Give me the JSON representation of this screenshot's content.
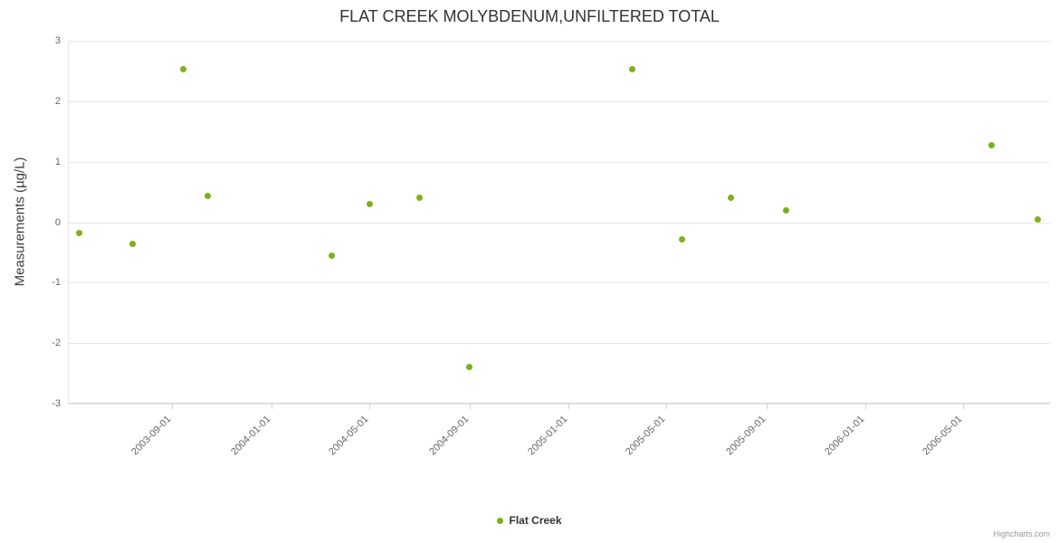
{
  "credits": "Highcharts.com",
  "chart_data": {
    "type": "scatter",
    "title": "FLAT CREEK MOLYBDENUM,UNFILTERED TOTAL",
    "xlabel": "",
    "ylabel": "Measurements (µg/L)",
    "ylim": [
      -3,
      3
    ],
    "y_ticks": [
      3,
      2,
      1,
      0,
      -1,
      -2,
      -3
    ],
    "x_range": [
      "2003-04-26",
      "2006-08-16"
    ],
    "x_ticks": [
      "2003-09-01",
      "2004-01-01",
      "2004-05-01",
      "2004-09-01",
      "2005-01-01",
      "2005-05-01",
      "2005-09-01",
      "2006-01-01",
      "2006-05-01"
    ],
    "grid": true,
    "legend": {
      "position": "bottom",
      "items": [
        {
          "label": "Flat Creek",
          "color": "#7cb11a"
        }
      ]
    },
    "series": [
      {
        "name": "Flat Creek",
        "color": "#7cb11a",
        "points": [
          {
            "x": "2003-05-10",
            "y": -0.18
          },
          {
            "x": "2003-07-15",
            "y": -0.36
          },
          {
            "x": "2003-09-15",
            "y": 2.53
          },
          {
            "x": "2003-10-15",
            "y": 0.43
          },
          {
            "x": "2004-03-15",
            "y": -0.55
          },
          {
            "x": "2004-05-01",
            "y": 0.3
          },
          {
            "x": "2004-07-01",
            "y": 0.4
          },
          {
            "x": "2004-09-01",
            "y": -2.4
          },
          {
            "x": "2005-03-20",
            "y": 2.53
          },
          {
            "x": "2005-05-20",
            "y": -0.28
          },
          {
            "x": "2005-07-20",
            "y": 0.4
          },
          {
            "x": "2005-09-25",
            "y": 0.2
          },
          {
            "x": "2006-06-05",
            "y": 1.27
          },
          {
            "x": "2006-08-01",
            "y": 0.05
          }
        ]
      }
    ]
  }
}
